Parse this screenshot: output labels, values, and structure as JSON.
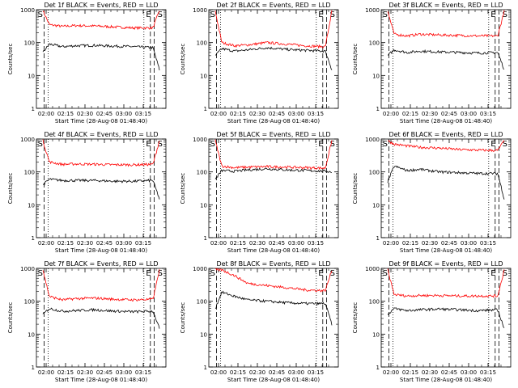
{
  "chart_data": [
    {
      "type": "line",
      "title": "Det 1f BLACK = Events, RED = LLD",
      "xlabel": "Start Time (28-Aug-08 01:48:40)",
      "ylabel": "Counts/sec",
      "x_ticks": [
        "02:00",
        "02:15",
        "02:30",
        "02:45",
        "03:00",
        "03:15"
      ],
      "y_ticks": [
        "1",
        "10",
        "100",
        "1000"
      ],
      "ylim": [
        1,
        1000
      ],
      "yscale": "log",
      "markers": [
        "S",
        "E",
        "S"
      ],
      "series": [
        {
          "name": "LLD",
          "color": "#ff0000",
          "x": [
            0.05,
            0.1,
            0.2,
            0.3,
            0.45,
            0.6,
            0.75,
            0.9,
            0.95
          ],
          "y": [
            950,
            350,
            310,
            330,
            320,
            300,
            280,
            280,
            950
          ]
        },
        {
          "name": "Events",
          "color": "#000000",
          "x": [
            0.05,
            0.1,
            0.2,
            0.3,
            0.45,
            0.6,
            0.75,
            0.9,
            0.95
          ],
          "y": [
            50,
            90,
            75,
            80,
            82,
            78,
            75,
            70,
            15
          ]
        }
      ]
    },
    {
      "type": "line",
      "title": "Det 2f BLACK = Events, RED = LLD",
      "xlabel": "Start Time (28-Aug-08 01:48:40)",
      "ylabel": "Counts/sec",
      "x_ticks": [
        "02:00",
        "02:15",
        "02:30",
        "02:45",
        "03:00",
        "03:15"
      ],
      "y_ticks": [
        "1",
        "10",
        "100",
        "1000"
      ],
      "ylim": [
        1,
        1000
      ],
      "yscale": "log",
      "markers": [
        "S",
        "E",
        "S"
      ],
      "series": [
        {
          "name": "LLD",
          "color": "#ff0000",
          "x": [
            0.05,
            0.1,
            0.2,
            0.3,
            0.45,
            0.6,
            0.75,
            0.9,
            0.95
          ],
          "y": [
            900,
            100,
            80,
            85,
            100,
            90,
            80,
            75,
            900
          ]
        },
        {
          "name": "Events",
          "color": "#000000",
          "x": [
            0.05,
            0.1,
            0.2,
            0.3,
            0.45,
            0.6,
            0.75,
            0.9,
            0.95
          ],
          "y": [
            40,
            65,
            55,
            60,
            70,
            62,
            58,
            55,
            15
          ]
        }
      ]
    },
    {
      "type": "line",
      "title": "Det 3f BLACK = Events, RED = LLD",
      "xlabel": "Start Time (28-Aug-08 01:48:40)",
      "ylabel": "Counts/sec",
      "x_ticks": [
        "02:00",
        "02:15",
        "02:30",
        "02:45",
        "03:00",
        "03:15"
      ],
      "y_ticks": [
        "1",
        "10",
        "100",
        "1000"
      ],
      "ylim": [
        1,
        1000
      ],
      "yscale": "log",
      "markers": [
        "S",
        "E",
        "S"
      ],
      "series": [
        {
          "name": "LLD",
          "color": "#ff0000",
          "x": [
            0.05,
            0.1,
            0.2,
            0.3,
            0.45,
            0.6,
            0.75,
            0.9,
            0.95
          ],
          "y": [
            900,
            180,
            160,
            180,
            170,
            165,
            160,
            160,
            900
          ]
        },
        {
          "name": "Events",
          "color": "#000000",
          "x": [
            0.05,
            0.1,
            0.2,
            0.3,
            0.45,
            0.6,
            0.75,
            0.9,
            0.95
          ],
          "y": [
            40,
            60,
            50,
            55,
            52,
            50,
            48,
            50,
            15
          ]
        }
      ]
    },
    {
      "type": "line",
      "title": "Det 4f BLACK = Events, RED = LLD",
      "xlabel": "Start Time (28-Aug-08 01:48:40)",
      "ylabel": "Counts/sec",
      "x_ticks": [
        "02:00",
        "02:15",
        "02:30",
        "02:45",
        "03:00",
        "03:15"
      ],
      "y_ticks": [
        "1",
        "10",
        "100",
        "1000"
      ],
      "ylim": [
        1,
        1000
      ],
      "yscale": "log",
      "markers": [
        "S",
        "E",
        "S"
      ],
      "series": [
        {
          "name": "LLD",
          "color": "#ff0000",
          "x": [
            0.05,
            0.1,
            0.2,
            0.3,
            0.45,
            0.6,
            0.75,
            0.9,
            0.95
          ],
          "y": [
            900,
            200,
            170,
            175,
            170,
            165,
            165,
            170,
            900
          ]
        },
        {
          "name": "Events",
          "color": "#000000",
          "x": [
            0.05,
            0.1,
            0.2,
            0.3,
            0.45,
            0.6,
            0.75,
            0.9,
            0.95
          ],
          "y": [
            40,
            60,
            55,
            55,
            55,
            52,
            52,
            55,
            15
          ]
        }
      ]
    },
    {
      "type": "line",
      "title": "Det 5f BLACK = Events, RED = LLD",
      "xlabel": "Start Time (28-Aug-08 01:48:40)",
      "ylabel": "Counts/sec",
      "x_ticks": [
        "02:00",
        "02:15",
        "02:30",
        "02:45",
        "03:00",
        "03:15"
      ],
      "y_ticks": [
        "1",
        "10",
        "100",
        "1000"
      ],
      "ylim": [
        1,
        1000
      ],
      "yscale": "log",
      "markers": [
        "S",
        "E",
        "S"
      ],
      "series": [
        {
          "name": "LLD",
          "color": "#ff0000",
          "x": [
            0.05,
            0.1,
            0.2,
            0.3,
            0.45,
            0.6,
            0.75,
            0.9,
            0.95
          ],
          "y": [
            900,
            150,
            135,
            140,
            145,
            140,
            135,
            130,
            900
          ]
        },
        {
          "name": "Events",
          "color": "#000000",
          "x": [
            0.05,
            0.1,
            0.2,
            0.3,
            0.45,
            0.6,
            0.75,
            0.9,
            0.95
          ],
          "y": [
            60,
            110,
            105,
            115,
            125,
            115,
            110,
            105,
            100
          ]
        }
      ]
    },
    {
      "type": "line",
      "title": "Det 6f BLACK = Events, RED = LLD",
      "xlabel": "Start Time (28-Aug-08 01:48:40)",
      "ylabel": "Counts/sec",
      "x_ticks": [
        "02:00",
        "02:15",
        "02:30",
        "02:45",
        "03:00",
        "03:15"
      ],
      "y_ticks": [
        "1",
        "10",
        "100",
        "1000"
      ],
      "ylim": [
        1,
        1000
      ],
      "yscale": "log",
      "markers": [
        "S",
        "E",
        "S"
      ],
      "series": [
        {
          "name": "LLD",
          "color": "#ff0000",
          "x": [
            0.05,
            0.1,
            0.2,
            0.3,
            0.45,
            0.6,
            0.75,
            0.9,
            0.95
          ],
          "y": [
            900,
            700,
            620,
            560,
            530,
            480,
            460,
            450,
            900
          ]
        },
        {
          "name": "Events",
          "color": "#000000",
          "x": [
            0.05,
            0.1,
            0.2,
            0.3,
            0.45,
            0.6,
            0.75,
            0.9,
            0.95
          ],
          "y": [
            50,
            150,
            110,
            120,
            100,
            95,
            90,
            90,
            15
          ]
        }
      ]
    },
    {
      "type": "line",
      "title": "Det 7f BLACK = Events, RED = LLD",
      "xlabel": "Start Time (28-Aug-08 01:48:40)",
      "ylabel": "Counts/sec",
      "x_ticks": [
        "02:00",
        "02:15",
        "02:30",
        "02:45",
        "03:00",
        "03:15"
      ],
      "y_ticks": [
        "1",
        "10",
        "100",
        "1000"
      ],
      "ylim": [
        1,
        1000
      ],
      "yscale": "log",
      "markers": [
        "S",
        "E",
        "S"
      ],
      "series": [
        {
          "name": "LLD",
          "color": "#ff0000",
          "x": [
            0.05,
            0.1,
            0.2,
            0.3,
            0.45,
            0.6,
            0.75,
            0.9,
            0.95
          ],
          "y": [
            900,
            140,
            110,
            120,
            125,
            115,
            110,
            115,
            900
          ]
        },
        {
          "name": "Events",
          "color": "#000000",
          "x": [
            0.05,
            0.1,
            0.2,
            0.3,
            0.45,
            0.6,
            0.75,
            0.9,
            0.95
          ],
          "y": [
            40,
            60,
            50,
            52,
            55,
            50,
            48,
            50,
            15
          ]
        }
      ]
    },
    {
      "type": "line",
      "title": "Det 8f BLACK = Events, RED = LLD",
      "xlabel": "Start Time (28-Aug-08 01:48:40)",
      "ylabel": "Counts/sec",
      "x_ticks": [
        "02:00",
        "02:15",
        "02:30",
        "02:45",
        "03:00",
        "03:15"
      ],
      "y_ticks": [
        "1",
        "10",
        "100",
        "1000"
      ],
      "ylim": [
        1,
        1000
      ],
      "yscale": "log",
      "markers": [
        "S",
        "E",
        "S"
      ],
      "series": [
        {
          "name": "LLD",
          "color": "#ff0000",
          "x": [
            0.05,
            0.1,
            0.2,
            0.3,
            0.45,
            0.6,
            0.75,
            0.9,
            0.95
          ],
          "y": [
            900,
            900,
            600,
            350,
            300,
            260,
            220,
            210,
            900
          ]
        },
        {
          "name": "Events",
          "color": "#000000",
          "x": [
            0.05,
            0.1,
            0.2,
            0.3,
            0.45,
            0.6,
            0.75,
            0.9,
            0.95
          ],
          "y": [
            60,
            190,
            140,
            110,
            100,
            90,
            85,
            85,
            20
          ]
        }
      ]
    },
    {
      "type": "line",
      "title": "Det 9f BLACK = Events, RED = LLD",
      "xlabel": "Start Time (28-Aug-08 01:48:40)",
      "ylabel": "Counts/sec",
      "x_ticks": [
        "02:00",
        "02:15",
        "02:30",
        "02:45",
        "03:00",
        "03:15"
      ],
      "y_ticks": [
        "1",
        "10",
        "100",
        "1000"
      ],
      "ylim": [
        1,
        1000
      ],
      "yscale": "log",
      "markers": [
        "S",
        "E",
        "S"
      ],
      "series": [
        {
          "name": "LLD",
          "color": "#ff0000",
          "x": [
            0.05,
            0.1,
            0.2,
            0.3,
            0.45,
            0.6,
            0.75,
            0.9,
            0.95
          ],
          "y": [
            900,
            160,
            145,
            150,
            150,
            145,
            145,
            145,
            900
          ]
        },
        {
          "name": "Events",
          "color": "#000000",
          "x": [
            0.05,
            0.1,
            0.2,
            0.3,
            0.45,
            0.6,
            0.75,
            0.9,
            0.95
          ],
          "y": [
            40,
            60,
            52,
            55,
            58,
            55,
            52,
            55,
            15
          ]
        }
      ]
    }
  ]
}
